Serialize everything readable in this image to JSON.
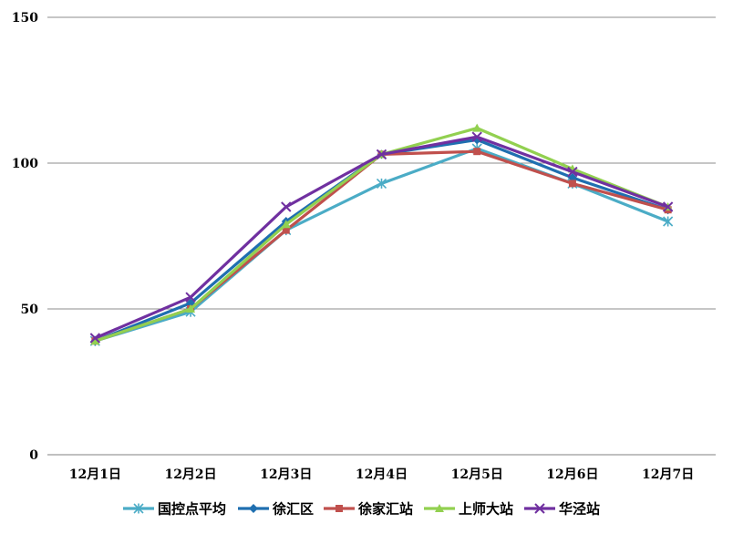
{
  "chart_data": {
    "type": "line",
    "categories": [
      "12月1日",
      "12月2日",
      "12月3日",
      "12月4日",
      "12月5日",
      "12月6日",
      "12月7日"
    ],
    "ylim": [
      0,
      150
    ],
    "yticks": [
      0,
      50,
      100,
      150
    ],
    "grid": true,
    "legend_position": "bottom",
    "series": [
      {
        "name": "国控点平均",
        "color": "#4bacc6",
        "marker": "star",
        "values": [
          39,
          49,
          77,
          93,
          105,
          93,
          80
        ]
      },
      {
        "name": "徐汇区",
        "color": "#1f6fb0",
        "marker": "diamond",
        "values": [
          39,
          52,
          80,
          103,
          108,
          95,
          84
        ]
      },
      {
        "name": "徐家汇站",
        "color": "#c0504d",
        "marker": "square",
        "values": [
          39,
          50,
          77,
          103,
          104,
          93,
          84
        ]
      },
      {
        "name": "上师大站",
        "color": "#92d050",
        "marker": "triangle",
        "values": [
          39,
          50,
          79,
          103,
          112,
          98,
          85
        ]
      },
      {
        "name": "华泾站",
        "color": "#7030a0",
        "marker": "x",
        "values": [
          40,
          54,
          85,
          103,
          109,
          97,
          85
        ]
      }
    ]
  }
}
